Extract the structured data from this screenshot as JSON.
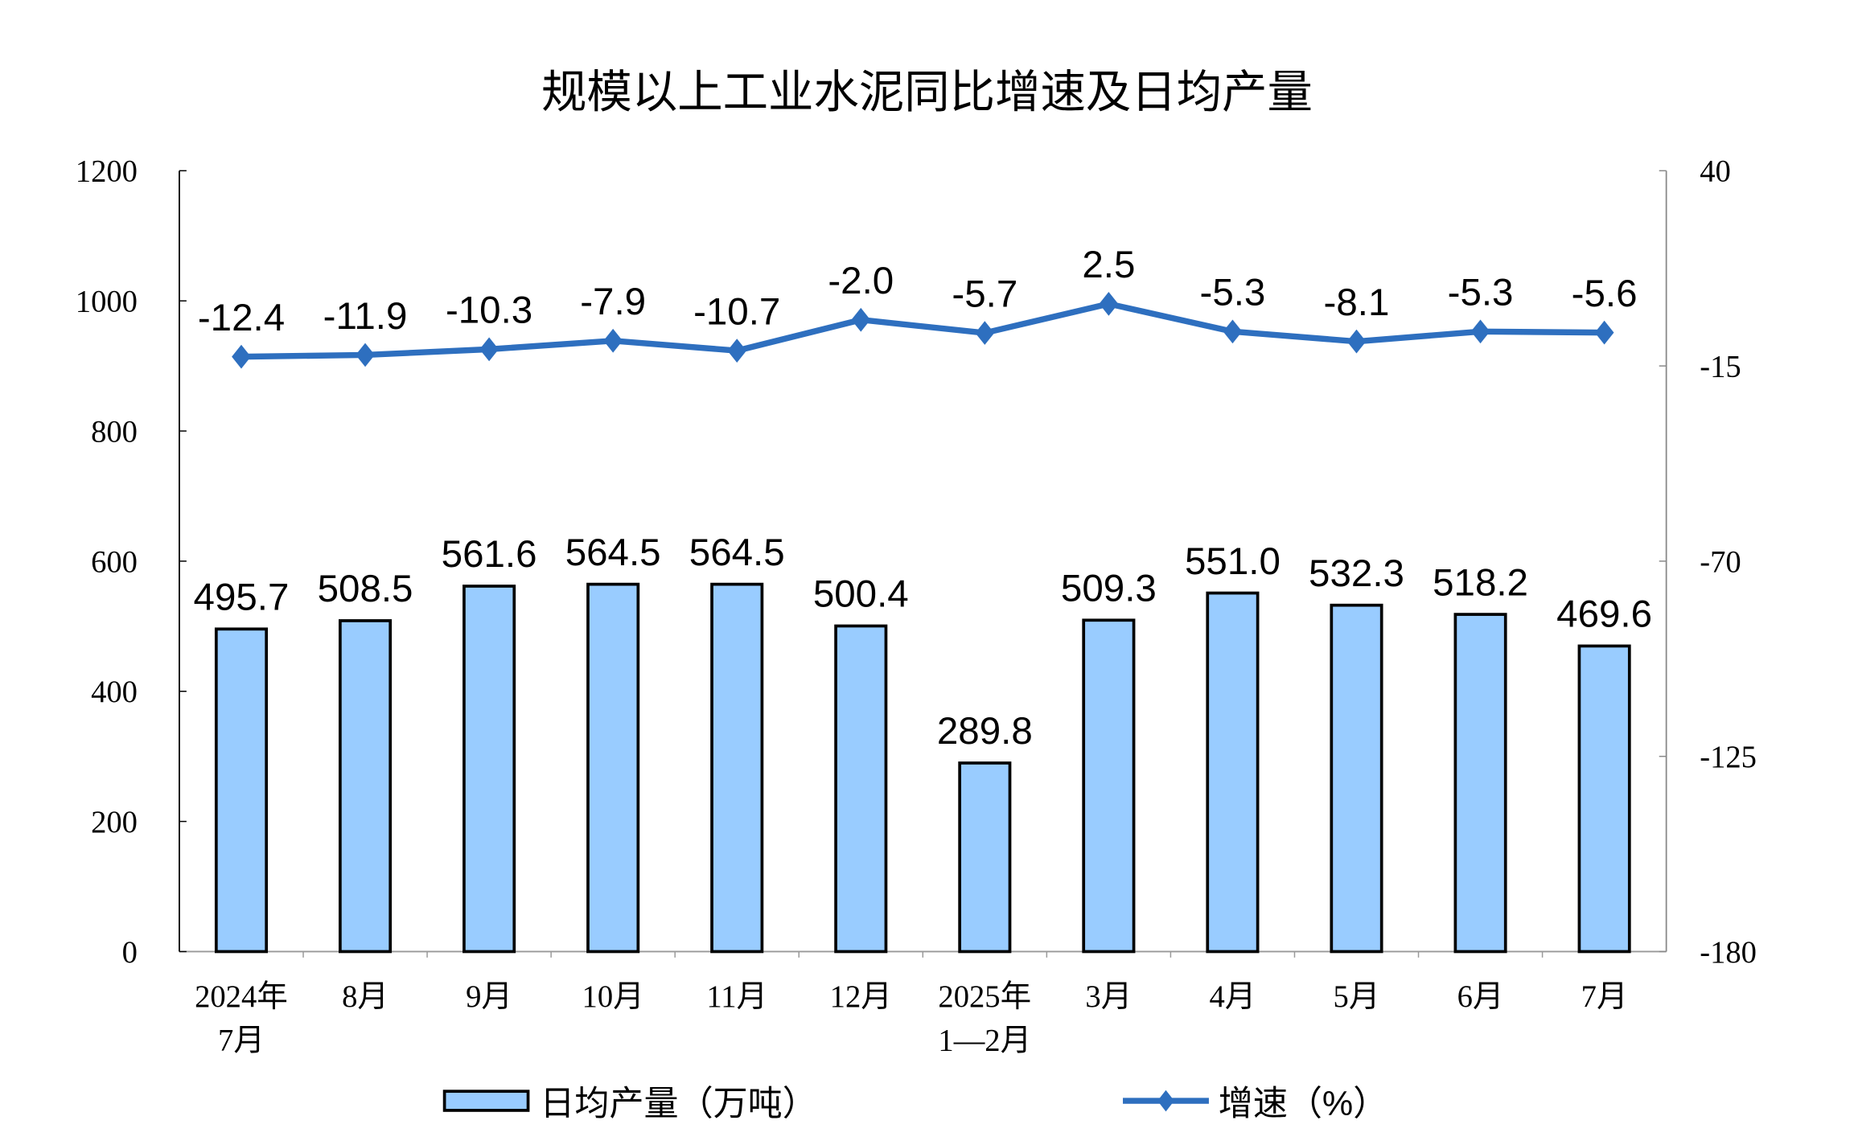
{
  "chart_data": {
    "type": "bar+line",
    "title": "规模以上工业水泥同比增速及日均产量",
    "categories": [
      [
        "2024年",
        "7月"
      ],
      [
        "8月"
      ],
      [
        "9月"
      ],
      [
        "10月"
      ],
      [
        "11月"
      ],
      [
        "12月"
      ],
      [
        "2025年",
        "1—2月"
      ],
      [
        "3月"
      ],
      [
        "4月"
      ],
      [
        "5月"
      ],
      [
        "6月"
      ],
      [
        "7月"
      ]
    ],
    "series": [
      {
        "name": "日均产量（万吨）",
        "type": "bar",
        "axis": "left",
        "color": "#99CCFF",
        "values": [
          495.7,
          508.5,
          561.6,
          564.5,
          564.5,
          500.4,
          289.8,
          509.3,
          551.0,
          532.3,
          518.2,
          469.6
        ],
        "labels": [
          "495.7",
          "508.5",
          "561.6",
          "564.5",
          "564.5",
          "500.4",
          "289.8",
          "509.3",
          "551.0",
          "532.3",
          "518.2",
          "469.6"
        ]
      },
      {
        "name": "增速（%）",
        "type": "line",
        "axis": "right",
        "color": "#2E6FBF",
        "marker": "diamond",
        "values": [
          -12.4,
          -11.9,
          -10.3,
          -7.9,
          -10.7,
          -2.0,
          -5.7,
          2.5,
          -5.3,
          -8.1,
          -5.3,
          -5.6
        ],
        "labels": [
          "-12.4",
          "-11.9",
          "-10.3",
          "-7.9",
          "-10.7",
          "-2.0",
          "-5.7",
          "2.5",
          "-5.3",
          "-8.1",
          "-5.3",
          "-5.6"
        ]
      }
    ],
    "y_left": {
      "lim": [
        0,
        1200
      ],
      "ticks": [
        "0",
        "200",
        "400",
        "600",
        "800",
        "1000",
        "1200"
      ]
    },
    "y_right": {
      "lim": [
        -180,
        40
      ],
      "ticks": [
        "-180",
        "-125",
        "-70",
        "-15",
        "40"
      ]
    },
    "grid": false,
    "legend": "bottom"
  }
}
